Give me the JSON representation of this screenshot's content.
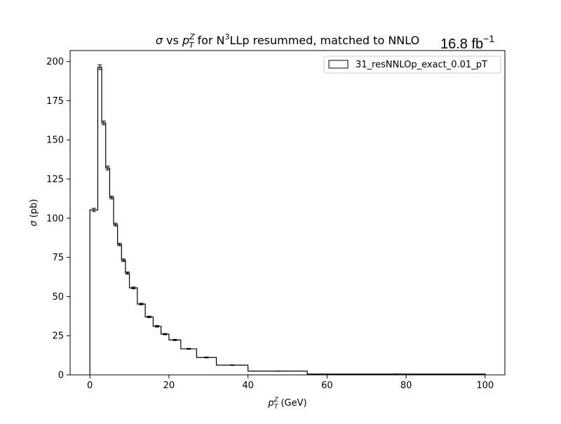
{
  "chart_data": {
    "type": "histogram",
    "title": {
      "sigma": "σ",
      "vs": " vs ",
      "p": "p",
      "sup": "Z",
      "sub": "T",
      "for": " for N",
      "n_exp": "3",
      "rest": "LLp resummed, matched to NNLO"
    },
    "luminosity": {
      "value": "16.8 fb",
      "exp": "−1"
    },
    "xlabel": {
      "p": "p",
      "sup": "Z",
      "sub": "T",
      "unit": " (GeV)"
    },
    "ylabel": {
      "sigma": "σ",
      "unit": " (pb)"
    },
    "xlim": [
      -5,
      105
    ],
    "ylim": [
      0,
      207
    ],
    "xticks": [
      "0",
      "20",
      "40",
      "60",
      "80",
      "100"
    ],
    "yticks": [
      "0",
      "25",
      "50",
      "75",
      "100",
      "125",
      "150",
      "175",
      "200"
    ],
    "grid": false,
    "legend": {
      "position": "top-right",
      "label": "31_resNNLOp_exact_0.01_pT"
    },
    "line_color": "#000000",
    "bin_edges": [
      0,
      2,
      3,
      4,
      5,
      6,
      7,
      8,
      9,
      10,
      12,
      14,
      16,
      18,
      20,
      23,
      27,
      32,
      40,
      55,
      100
    ],
    "values": [
      105.3,
      196.4,
      160.8,
      132.0,
      113.2,
      95.9,
      83.2,
      73.2,
      65.0,
      55.5,
      45.2,
      37.0,
      31.0,
      26.0,
      22.3,
      16.6,
      11.1,
      6.2,
      2.4,
      0.5
    ],
    "errors": [
      1.0,
      1.5,
      1.2,
      1.2,
      0.9,
      0.9,
      0.8,
      0.8,
      0.7,
      0.6,
      0.5,
      0.5,
      0.5,
      0.4,
      0.4,
      0.3,
      0.3,
      0.2,
      0.1,
      0.1
    ]
  }
}
